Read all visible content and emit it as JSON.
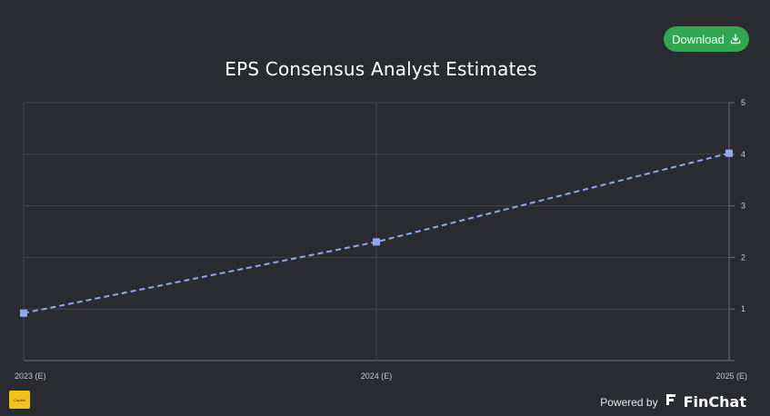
{
  "header": {
    "download_label": "Download",
    "download_icon": "download-icon"
  },
  "footer": {
    "logo_text": "Capital",
    "powered_by": "Powered by",
    "brand": "FinChat",
    "brand_icon": "finchat-logo-icon"
  },
  "colors": {
    "background": "#2a2b31",
    "grid": "#44454c",
    "series": "#8fa9ef",
    "download_button": "#2fa84f",
    "logo_badge": "#f2c21a"
  },
  "chart_data": {
    "type": "line",
    "title": "EPS Consensus Analyst Estimates",
    "categories": [
      "2023 (E)",
      "2024 (E)",
      "2025 (E)"
    ],
    "series": [
      {
        "values": [
          0.92,
          2.3,
          4.02
        ]
      }
    ],
    "y_ticks": [
      "",
      "1",
      "2",
      "3",
      "4",
      "5"
    ],
    "ylim": [
      0,
      5
    ],
    "y_axis_position": "right",
    "line_style": "dashed",
    "marker": "square",
    "grid": true,
    "legend": "none"
  }
}
